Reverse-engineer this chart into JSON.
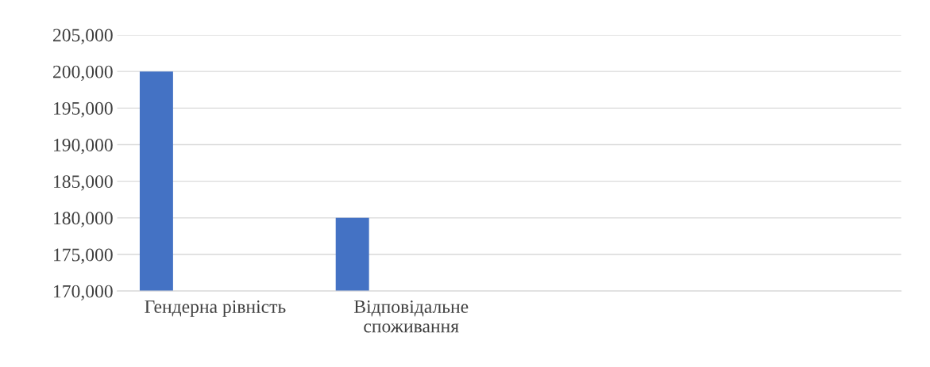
{
  "chart_data": {
    "type": "bar",
    "categories": [
      "Гендерна рівність",
      "Відповідальне споживання",
      null,
      null
    ],
    "values": [
      200000,
      180000,
      null,
      null
    ],
    "color": "#4472c4",
    "ylim": [
      170000,
      205000
    ],
    "yticks": [
      {
        "value": 170000,
        "label": "170,000"
      },
      {
        "value": 175000,
        "label": "175,000"
      },
      {
        "value": 180000,
        "label": "180,000"
      },
      {
        "value": 185000,
        "label": "185,000"
      },
      {
        "value": 190000,
        "label": "190,000"
      },
      {
        "value": 195000,
        "label": "195,000"
      },
      {
        "value": 200000,
        "label": "200,000"
      },
      {
        "value": 205000,
        "label": "205,000"
      }
    ],
    "grid": "y"
  }
}
